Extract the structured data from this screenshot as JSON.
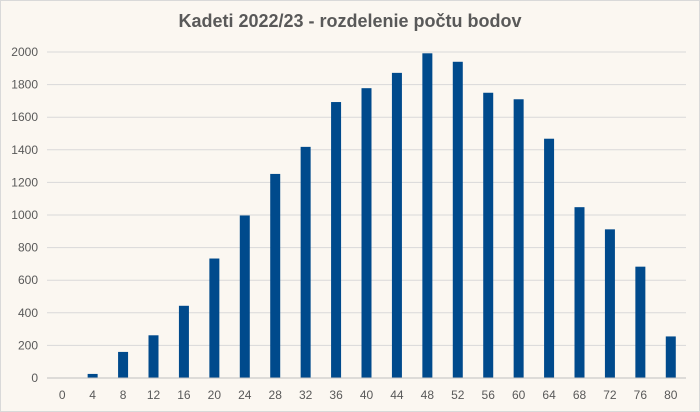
{
  "chart_data": {
    "type": "bar",
    "title": "Kadeti 2022/23 - rozdelenie počtu bodov",
    "xlabel": "",
    "ylabel": "",
    "ylim": [
      0,
      2000
    ],
    "yticks": [
      0,
      200,
      400,
      600,
      800,
      1000,
      1200,
      1400,
      1600,
      1800,
      2000
    ],
    "categories": [
      "0",
      "4",
      "8",
      "12",
      "16",
      "20",
      "24",
      "28",
      "32",
      "36",
      "40",
      "44",
      "48",
      "52",
      "56",
      "60",
      "64",
      "68",
      "72",
      "76",
      "80"
    ],
    "values": [
      0,
      25,
      160,
      262,
      443,
      733,
      997,
      1252,
      1418,
      1693,
      1778,
      1872,
      1992,
      1940,
      1750,
      1710,
      1468,
      1048,
      912,
      683,
      255
    ],
    "grid": true,
    "legend": "none",
    "bar_color": "#004a8c",
    "grid_color": "#d9d9d9"
  }
}
